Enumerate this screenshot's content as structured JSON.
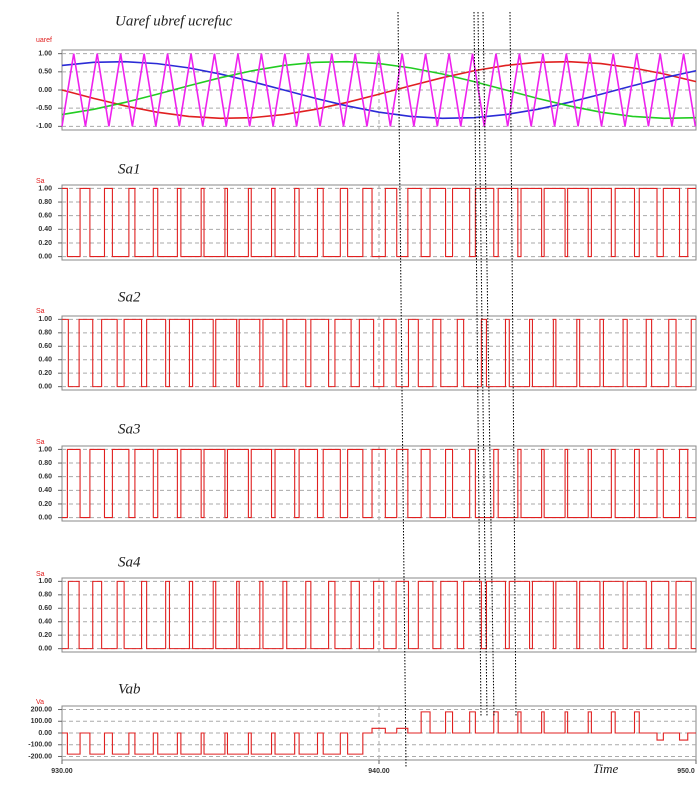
{
  "chart_data": [
    {
      "type": "line",
      "title": "Uaref ubref ucrefuc",
      "y_label": "uaref",
      "xlim": [
        930,
        950
      ],
      "ylim": [
        -1.1,
        1.1
      ],
      "grid": true,
      "yticks": [
        {
          "value": 1,
          "label": "1.00"
        },
        {
          "value": 0.5,
          "label": "0.50"
        },
        {
          "value": 0,
          "label": "0.00"
        },
        {
          "value": -0.5,
          "label": "-0.50"
        },
        {
          "value": -1,
          "label": "-1.00"
        }
      ],
      "series": [
        {
          "color": "#e02020",
          "x": [
            930,
            931,
            932,
            933,
            934,
            935,
            936,
            937,
            938,
            939,
            940,
            941,
            942,
            943,
            944,
            945,
            946,
            947,
            948,
            949,
            950
          ],
          "values": [
            0,
            -0.23,
            -0.439,
            -0.61,
            -0.726,
            -0.778,
            -0.761,
            -0.675,
            -0.531,
            -0.339,
            -0.116,
            0.116,
            0.339,
            0.53,
            0.675,
            0.761,
            0.778,
            0.726,
            0.609,
            0.44,
            0.231
          ]
        },
        {
          "color": "#2b2bd6",
          "x": [
            930,
            931,
            932,
            933,
            934,
            935,
            936,
            937,
            938,
            939,
            940,
            941,
            942,
            943,
            944,
            945,
            946,
            947,
            948,
            949,
            950
          ],
          "values": [
            0.675,
            0.761,
            0.778,
            0.725,
            0.609,
            0.439,
            0.23,
            0,
            -0.23,
            -0.439,
            -0.61,
            -0.726,
            -0.778,
            -0.761,
            -0.675,
            -0.531,
            -0.339,
            -0.116,
            0.116,
            0.339,
            0.53
          ]
        },
        {
          "color": "#22cc22",
          "x": [
            930,
            931,
            932,
            933,
            934,
            935,
            936,
            937,
            938,
            939,
            940,
            941,
            942,
            943,
            944,
            945,
            946,
            947,
            948,
            949,
            950
          ],
          "values": [
            -0.675,
            -0.531,
            -0.339,
            -0.116,
            0.116,
            0.339,
            0.53,
            0.675,
            0.761,
            0.778,
            0.726,
            0.609,
            0.44,
            0.231,
            0,
            -0.23,
            -0.439,
            -0.61,
            -0.726,
            -0.778,
            -0.761
          ]
        },
        {
          "color": "#ee22ee",
          "x": [
            930.0,
            930.37,
            930.74,
            931.11,
            931.48,
            931.85,
            932.22,
            932.59,
            932.96,
            933.33,
            933.7,
            934.07,
            934.44,
            934.81,
            935.18,
            935.55,
            935.92,
            936.29,
            936.66,
            937.03,
            937.4,
            937.77,
            938.14,
            938.51,
            938.88,
            939.25,
            939.62,
            939.99,
            940.36,
            940.73,
            941.1,
            941.47,
            941.84,
            942.21,
            942.58,
            942.95,
            943.32,
            943.69,
            944.06,
            944.43,
            944.8,
            945.17,
            945.54,
            945.91,
            946.28,
            946.65,
            947.02,
            947.39,
            947.76,
            948.13,
            948.5,
            948.87,
            949.24,
            949.61,
            949.98
          ],
          "values": [
            -1,
            1,
            -1,
            1,
            -1,
            1,
            -1,
            1,
            -1,
            1,
            -1,
            1,
            -1,
            1,
            -1,
            1,
            -1,
            1,
            -1,
            1,
            -1,
            1,
            -1,
            1,
            -1,
            1,
            -1,
            1,
            -1,
            1,
            -1,
            1,
            -1,
            1,
            -1,
            1,
            -1,
            1,
            -1,
            1,
            -1,
            1,
            -1,
            1,
            -1,
            1,
            -1,
            1,
            -1,
            1,
            -1,
            1,
            -1,
            1,
            -1
          ]
        }
      ]
    },
    {
      "type": "step",
      "title": "Sa1",
      "y_label": "Sa",
      "xlim": [
        930,
        950
      ],
      "ylim": [
        -0.05,
        1.05
      ],
      "grid": true,
      "yticks": [
        {
          "value": 1,
          "label": "1.00"
        },
        {
          "value": 0.8,
          "label": "0.80"
        },
        {
          "value": 0.6,
          "label": "0.60"
        },
        {
          "value": 0.4,
          "label": "0.40"
        },
        {
          "value": 0.2,
          "label": "0.20"
        },
        {
          "value": 0,
          "label": "0.00"
        }
      ],
      "series": [
        {
          "color": "#e02020",
          "x": [
            930,
            930.17,
            930.57,
            930.88,
            931.34,
            931.59,
            932.11,
            932.3,
            932.88,
            933.02,
            933.64,
            933.75,
            934.39,
            934.48,
            935.14,
            935.22,
            935.88,
            935.97,
            936.61,
            936.72,
            937.34,
            937.48,
            938.06,
            938.24,
            938.78,
            939.01,
            939.49,
            939.78,
            940.2,
            940.56,
            940.91,
            941.33,
            941.61,
            942.1,
            942.32,
            942.86,
            943.04,
            943.62,
            943.76,
            944.38,
            944.48,
            945.13,
            945.21,
            945.87,
            945.95,
            946.6,
            946.7,
            947.33,
            947.45,
            948.06,
            948.21,
            948.77,
            948.97,
            949.48,
            949.74
          ],
          "values": [
            1,
            0,
            1,
            0,
            1,
            0,
            1,
            0,
            1,
            0,
            1,
            0,
            1,
            0,
            1,
            0,
            1,
            0,
            1,
            0,
            1,
            0,
            1,
            0,
            1,
            0,
            1,
            0,
            1,
            0,
            1,
            0,
            1,
            0,
            1,
            0,
            1,
            0,
            1,
            0,
            1,
            0,
            1,
            0,
            1,
            0,
            1,
            0,
            1,
            0,
            1,
            0,
            1,
            0,
            1
          ]
        }
      ]
    },
    {
      "type": "step",
      "title": "Sa2",
      "y_label": "Sa",
      "xlim": [
        930,
        950
      ],
      "ylim": [
        -0.05,
        1.05
      ],
      "grid": true,
      "yticks": [
        {
          "value": 1,
          "label": "1.00"
        },
        {
          "value": 0.8,
          "label": "0.80"
        },
        {
          "value": 0.6,
          "label": "0.60"
        },
        {
          "value": 0.4,
          "label": "0.40"
        },
        {
          "value": 0.2,
          "label": "0.20"
        },
        {
          "value": 0,
          "label": "0.00"
        }
      ],
      "series": [
        {
          "color": "#e02020",
          "x": [
            930,
            930.2,
            930.54,
            930.97,
            931.25,
            931.74,
            931.96,
            932.51,
            932.67,
            933.27,
            933.39,
            934.02,
            934.12,
            934.77,
            934.85,
            935.51,
            935.59,
            936.24,
            936.34,
            936.97,
            937.09,
            937.69,
            937.85,
            938.41,
            938.61,
            939.12,
            939.38,
            939.83,
            940.15,
            940.54,
            940.93,
            941.24,
            941.7,
            941.95,
            942.47,
            942.67,
            943.23,
            943.39,
            943.99,
            944.11,
            944.75,
            944.84,
            945.5,
            945.58,
            946.24,
            946.33,
            946.97,
            947.08,
            947.7,
            947.83,
            948.43,
            948.6,
            949.14,
            949.37,
            949.85
          ],
          "values": [
            1,
            0,
            1,
            0,
            1,
            0,
            1,
            0,
            1,
            0,
            1,
            0,
            1,
            0,
            1,
            0,
            1,
            0,
            1,
            0,
            1,
            0,
            1,
            0,
            1,
            0,
            1,
            0,
            1,
            0,
            1,
            0,
            1,
            0,
            1,
            0,
            1,
            0,
            1,
            0,
            1,
            0,
            1,
            0,
            1,
            0,
            1,
            0,
            1,
            0,
            1,
            0,
            1,
            0,
            1
          ]
        }
      ]
    },
    {
      "type": "step",
      "title": "Sa3",
      "y_label": "Sa",
      "xlim": [
        930,
        950
      ],
      "ylim": [
        -0.05,
        1.05
      ],
      "grid": true,
      "yticks": [
        {
          "value": 1,
          "label": "1.00"
        },
        {
          "value": 0.8,
          "label": "0.80"
        },
        {
          "value": 0.6,
          "label": "0.60"
        },
        {
          "value": 0.4,
          "label": "0.40"
        },
        {
          "value": 0.2,
          "label": "0.20"
        },
        {
          "value": 0,
          "label": "0.00"
        }
      ],
      "series": [
        {
          "color": "#e02020",
          "x": [
            930,
            930.17,
            930.57,
            930.88,
            931.34,
            931.59,
            932.11,
            932.3,
            932.88,
            933.02,
            933.64,
            933.75,
            934.39,
            934.48,
            935.14,
            935.22,
            935.88,
            935.97,
            936.61,
            936.72,
            937.34,
            937.48,
            938.06,
            938.24,
            938.78,
            939.01,
            939.49,
            939.78,
            940.2,
            940.56,
            940.91,
            941.33,
            941.61,
            942.1,
            942.32,
            942.86,
            943.04,
            943.62,
            943.76,
            944.38,
            944.48,
            945.13,
            945.21,
            945.87,
            945.95,
            946.6,
            946.7,
            947.33,
            947.45,
            948.06,
            948.21,
            948.77,
            948.97,
            949.48,
            949.74
          ],
          "values": [
            0,
            1,
            0,
            1,
            0,
            1,
            0,
            1,
            0,
            1,
            0,
            1,
            0,
            1,
            0,
            1,
            0,
            1,
            0,
            1,
            0,
            1,
            0,
            1,
            0,
            1,
            0,
            1,
            0,
            1,
            0,
            1,
            0,
            1,
            0,
            1,
            0,
            1,
            0,
            1,
            0,
            1,
            0,
            1,
            0,
            1,
            0,
            1,
            0,
            1,
            0,
            1,
            0,
            1,
            0
          ]
        }
      ]
    },
    {
      "type": "step",
      "title": "Sa4",
      "y_label": "Sa",
      "xlim": [
        930,
        950
      ],
      "ylim": [
        -0.05,
        1.05
      ],
      "grid": true,
      "yticks": [
        {
          "value": 1,
          "label": "1.00"
        },
        {
          "value": 0.8,
          "label": "0.80"
        },
        {
          "value": 0.6,
          "label": "0.60"
        },
        {
          "value": 0.4,
          "label": "0.40"
        },
        {
          "value": 0.2,
          "label": "0.20"
        },
        {
          "value": 0,
          "label": "0.00"
        }
      ],
      "series": [
        {
          "color": "#e02020",
          "x": [
            930,
            930.2,
            930.54,
            930.97,
            931.25,
            931.74,
            931.96,
            932.51,
            932.67,
            933.27,
            933.39,
            934.02,
            934.12,
            934.77,
            934.85,
            935.51,
            935.59,
            936.24,
            936.34,
            936.97,
            937.09,
            937.69,
            937.85,
            938.41,
            938.61,
            939.12,
            939.38,
            939.83,
            940.15,
            940.54,
            940.93,
            941.24,
            941.7,
            941.95,
            942.47,
            942.67,
            943.23,
            943.39,
            943.99,
            944.11,
            944.75,
            944.84,
            945.5,
            945.58,
            946.24,
            946.33,
            946.97,
            947.08,
            947.7,
            947.83,
            948.43,
            948.6,
            949.14,
            949.37,
            949.85
          ],
          "values": [
            0,
            1,
            0,
            1,
            0,
            1,
            0,
            1,
            0,
            1,
            0,
            1,
            0,
            1,
            0,
            1,
            0,
            1,
            0,
            1,
            0,
            1,
            0,
            1,
            0,
            1,
            0,
            1,
            0,
            1,
            0,
            1,
            0,
            1,
            0,
            1,
            0,
            1,
            0,
            1,
            0,
            1,
            0,
            1,
            0,
            1,
            0,
            1,
            0,
            1,
            0,
            1,
            0,
            1,
            0
          ]
        }
      ]
    },
    {
      "type": "step",
      "title": "Vab",
      "y_label": "Va",
      "x_label": "Time",
      "xlim": [
        930,
        950
      ],
      "ylim": [
        -230,
        230
      ],
      "grid": true,
      "yticks": [
        {
          "value": 200,
          "label": "200.00"
        },
        {
          "value": 100,
          "label": "100.00"
        },
        {
          "value": 0,
          "label": "0.00"
        },
        {
          "value": -100,
          "label": "-100.00"
        },
        {
          "value": -200,
          "label": "-200.00"
        }
      ],
      "xticks": [
        {
          "value": 930,
          "label": "930.00"
        },
        {
          "value": 940,
          "label": "940.00"
        },
        {
          "value": 950,
          "label": "950.0"
        }
      ],
      "series": [
        {
          "color": "#e02020",
          "x": [
            930,
            930.17,
            930.57,
            930.88,
            931.34,
            931.59,
            932.11,
            932.3,
            932.88,
            933.02,
            933.64,
            933.75,
            934.39,
            934.48,
            935.14,
            935.22,
            935.88,
            935.97,
            936.61,
            936.72,
            937.34,
            937.48,
            938.06,
            938.24,
            938.78,
            939.01,
            939.49,
            939.78,
            940.2,
            940.56,
            940.91,
            941.33,
            941.61,
            942.1,
            942.32,
            942.86,
            943.04,
            943.62,
            943.76,
            944.38,
            944.48,
            945.13,
            945.21,
            945.87,
            945.95,
            946.6,
            946.7,
            947.33,
            947.45,
            948.06,
            948.21,
            948.77,
            948.97,
            949.48,
            949.74
          ],
          "values": [
            0,
            -180,
            0,
            -180,
            0,
            -180,
            0,
            -180,
            0,
            -180,
            0,
            -180,
            0,
            -180,
            0,
            -180,
            0,
            -180,
            0,
            -180,
            0,
            -180,
            0,
            -180,
            0,
            -180,
            0,
            40,
            0,
            40,
            0,
            180,
            0,
            180,
            0,
            180,
            0,
            180,
            0,
            180,
            0,
            180,
            0,
            180,
            0,
            180,
            0,
            180,
            0,
            180,
            0,
            -60,
            0,
            -60,
            0
          ]
        }
      ]
    }
  ]
}
